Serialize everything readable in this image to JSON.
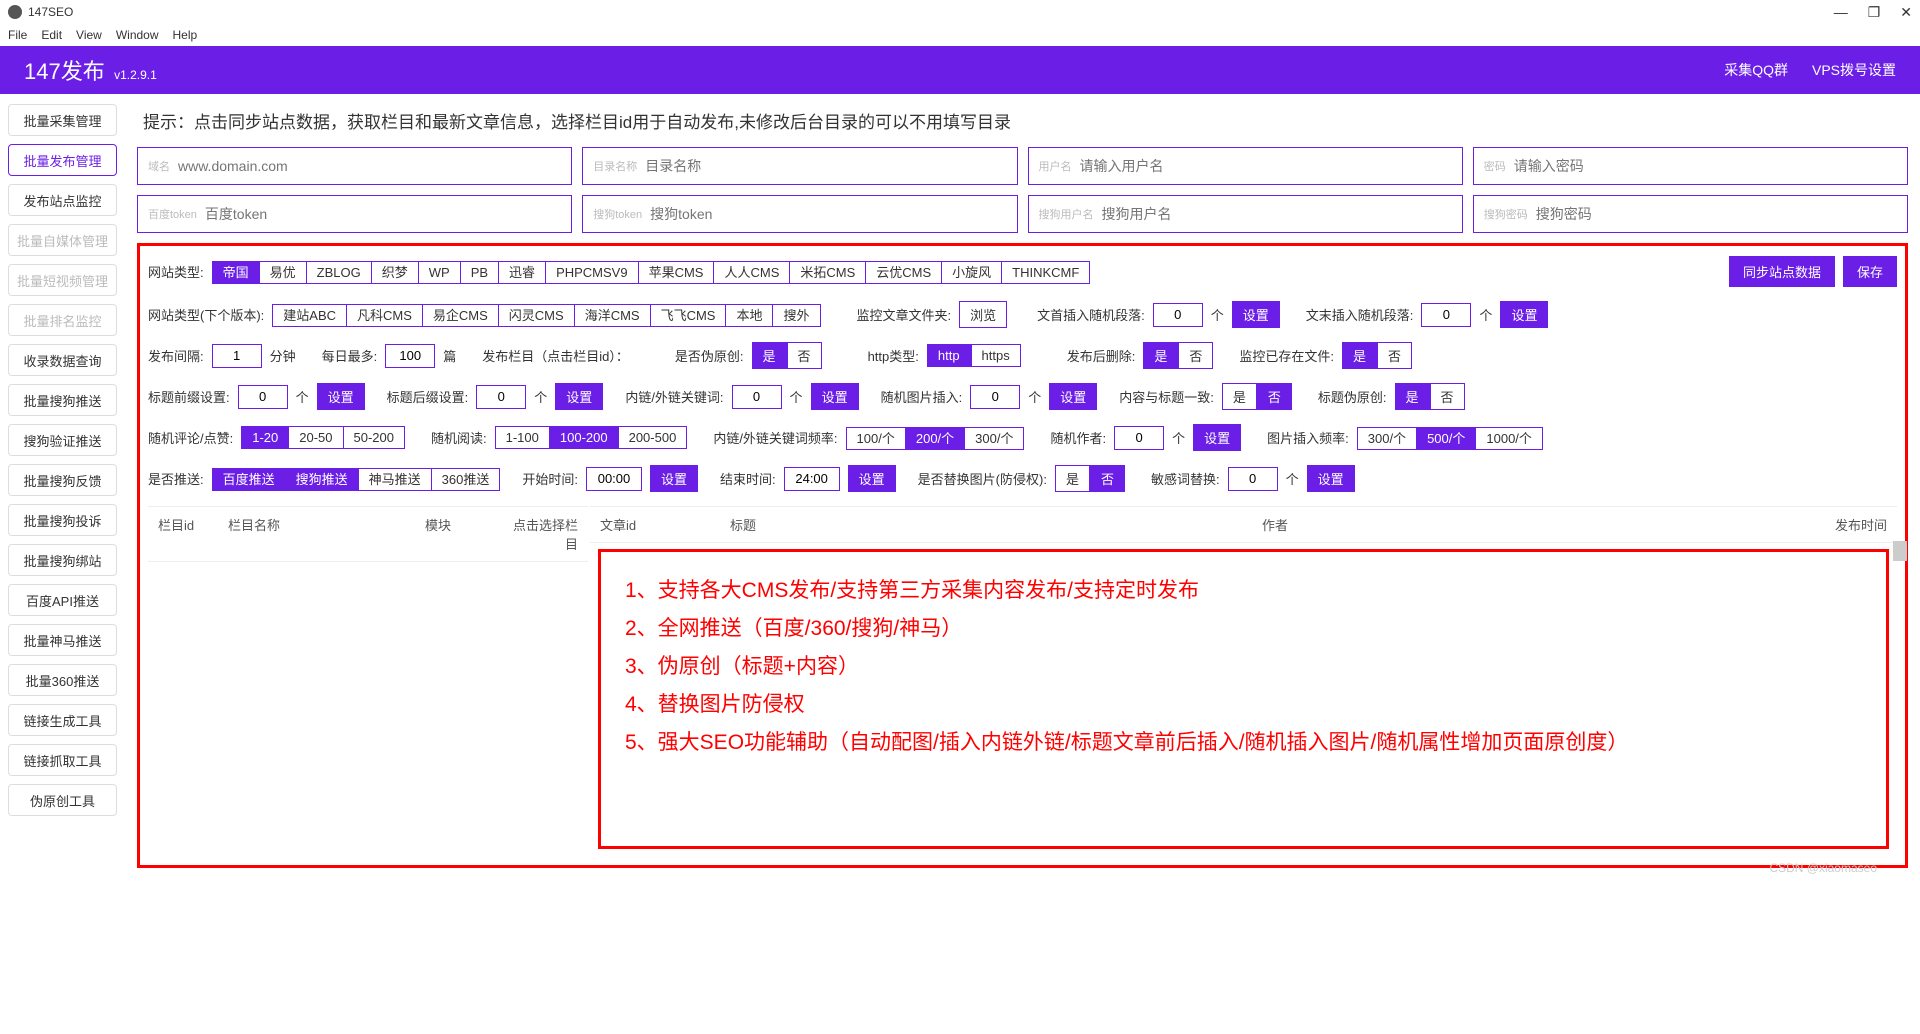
{
  "window": {
    "title": "147SEO"
  },
  "menu": [
    "File",
    "Edit",
    "View",
    "Window",
    "Help"
  ],
  "winControls": [
    "—",
    "❐",
    "✕"
  ],
  "header": {
    "title": "147发布",
    "version": "v1.2.9.1",
    "links": [
      "采集QQ群",
      "VPS拨号设置"
    ]
  },
  "sidebar": [
    {
      "label": "批量采集管理",
      "active": false
    },
    {
      "label": "批量发布管理",
      "active": true
    },
    {
      "label": "发布站点监控",
      "active": false
    },
    {
      "label": "批量自媒体管理",
      "disabled": true
    },
    {
      "label": "批量短视频管理",
      "disabled": true
    },
    {
      "label": "批量排名监控",
      "disabled": true
    },
    {
      "label": "收录数据查询",
      "active": false
    },
    {
      "label": "批量搜狗推送",
      "active": false
    },
    {
      "label": "搜狗验证推送",
      "active": false
    },
    {
      "label": "批量搜狗反馈",
      "active": false
    },
    {
      "label": "批量搜狗投诉",
      "active": false
    },
    {
      "label": "批量搜狗绑站",
      "active": false
    },
    {
      "label": "百度API推送",
      "active": false
    },
    {
      "label": "批量神马推送",
      "active": false
    },
    {
      "label": "批量360推送",
      "active": false
    },
    {
      "label": "链接生成工具",
      "active": false
    },
    {
      "label": "链接抓取工具",
      "active": false
    },
    {
      "label": "伪原创工具",
      "active": false
    }
  ],
  "hint": "提示：点击同步站点数据，获取栏目和最新文章信息，选择栏目id用于自动发布,未修改后台目录的可以不用填写目录",
  "fields1": [
    {
      "lbl": "域名",
      "ph": "www.domain.com"
    },
    {
      "lbl": "目录名称",
      "ph": "目录名称"
    },
    {
      "lbl": "用户名",
      "ph": "请输入用户名"
    },
    {
      "lbl": "密码",
      "ph": "请输入密码"
    }
  ],
  "fields2": [
    {
      "lbl": "百度token",
      "ph": "百度token"
    },
    {
      "lbl": "搜狗token",
      "ph": "搜狗token"
    },
    {
      "lbl": "搜狗用户名",
      "ph": "搜狗用户名"
    },
    {
      "lbl": "搜狗密码",
      "ph": "搜狗密码"
    }
  ],
  "siteType": {
    "label": "网站类型:",
    "opts": [
      "帝国",
      "易优",
      "ZBLOG",
      "织梦",
      "WP",
      "PB",
      "迅睿",
      "PHPCMSV9",
      "苹果CMS",
      "人人CMS",
      "米拓CMS",
      "云优CMS",
      "小旋风",
      "THINKCMF"
    ],
    "on": 0
  },
  "topBtns": {
    "sync": "同步站点数据",
    "save": "保存"
  },
  "nextVer": {
    "label": "网站类型(下个版本):",
    "opts": [
      "建站ABC",
      "凡科CMS",
      "易企CMS",
      "闪灵CMS",
      "海洋CMS",
      "飞飞CMS",
      "本地",
      "搜外"
    ]
  },
  "monitor": {
    "label": "监控文章文件夹:",
    "browse": "浏览"
  },
  "randStart": {
    "label": "文首插入随机段落:",
    "val": "0",
    "unit": "个",
    "set": "设置"
  },
  "randEnd": {
    "label": "文末插入随机段落:",
    "val": "0",
    "unit": "个",
    "set": "设置"
  },
  "interval": {
    "label": "发布间隔:",
    "val": "1",
    "unit": "分钟"
  },
  "daily": {
    "label": "每日最多:",
    "val": "100",
    "unit": "篇"
  },
  "pubCol": {
    "label": "发布栏目（点击栏目id）："
  },
  "pseudo": {
    "label": "是否伪原创:",
    "yes": "是",
    "no": "否",
    "on": 0
  },
  "httpType": {
    "label": "http类型:",
    "opts": [
      "http",
      "https"
    ],
    "on": 0
  },
  "delAfter": {
    "label": "发布后删除:",
    "yes": "是",
    "no": "否",
    "on": 0
  },
  "monExist": {
    "label": "监控已存在文件:",
    "yes": "是",
    "no": "否",
    "on": 0
  },
  "titlePre": {
    "label": "标题前缀设置:",
    "val": "0",
    "unit": "个",
    "set": "设置"
  },
  "titleSuf": {
    "label": "标题后缀设置:",
    "val": "0",
    "unit": "个",
    "set": "设置"
  },
  "linkKw": {
    "label": "内链/外链关键词:",
    "val": "0",
    "unit": "个",
    "set": "设置"
  },
  "randImg": {
    "label": "随机图片插入:",
    "val": "0",
    "unit": "个",
    "set": "设置"
  },
  "contTitle": {
    "label": "内容与标题一致:",
    "yes": "是",
    "no": "否",
    "on": 1
  },
  "titlePseudo": {
    "label": "标题伪原创:",
    "yes": "是",
    "no": "否",
    "on": 0
  },
  "randComment": {
    "label": "随机评论/点赞:",
    "opts": [
      "1-20",
      "20-50",
      "50-200"
    ],
    "on": 0
  },
  "randRead": {
    "label": "随机阅读:",
    "opts": [
      "1-100",
      "100-200",
      "200-500"
    ],
    "on": 1
  },
  "linkFreq": {
    "label": "内链/外链关键词频率:",
    "opts": [
      "100/个",
      "200/个",
      "300/个"
    ],
    "on": 1
  },
  "randAuthor": {
    "label": "随机作者:",
    "val": "0",
    "unit": "个",
    "set": "设置"
  },
  "imgFreq": {
    "label": "图片插入频率:",
    "opts": [
      "300/个",
      "500/个",
      "1000/个"
    ],
    "on": 1
  },
  "push": {
    "label": "是否推送:",
    "opts": [
      "百度推送",
      "搜狗推送",
      "神马推送",
      "360推送"
    ],
    "on": [
      0,
      1
    ]
  },
  "startTime": {
    "label": "开始时间:",
    "val": "00:00",
    "set": "设置"
  },
  "endTime": {
    "label": "结束时间:",
    "val": "24:00",
    "set": "设置"
  },
  "replaceImg": {
    "label": "是否替换图片(防侵权):",
    "yes": "是",
    "no": "否",
    "on": 1
  },
  "sensWord": {
    "label": "敏感词替换:",
    "val": "0",
    "unit": "个",
    "set": "设置"
  },
  "tblLeft": [
    "栏目id",
    "栏目名称",
    "模块",
    "点击选择栏目"
  ],
  "tblRight": [
    "文章id",
    "标题",
    "作者",
    "发布时间"
  ],
  "overlay": [
    "1、支持各大CMS发布/支持第三方采集内容发布/支持定时发布",
    "2、全网推送（百度/360/搜狗/神马）",
    "3、伪原创（标题+内容）",
    "4、替换图片防侵权",
    "5、强大SEO功能辅助（自动配图/插入内链外链/标题文章前后插入/随机插入图片/随机属性增加页面原创度）"
  ],
  "watermark": "CSDN @xiaomaseo"
}
